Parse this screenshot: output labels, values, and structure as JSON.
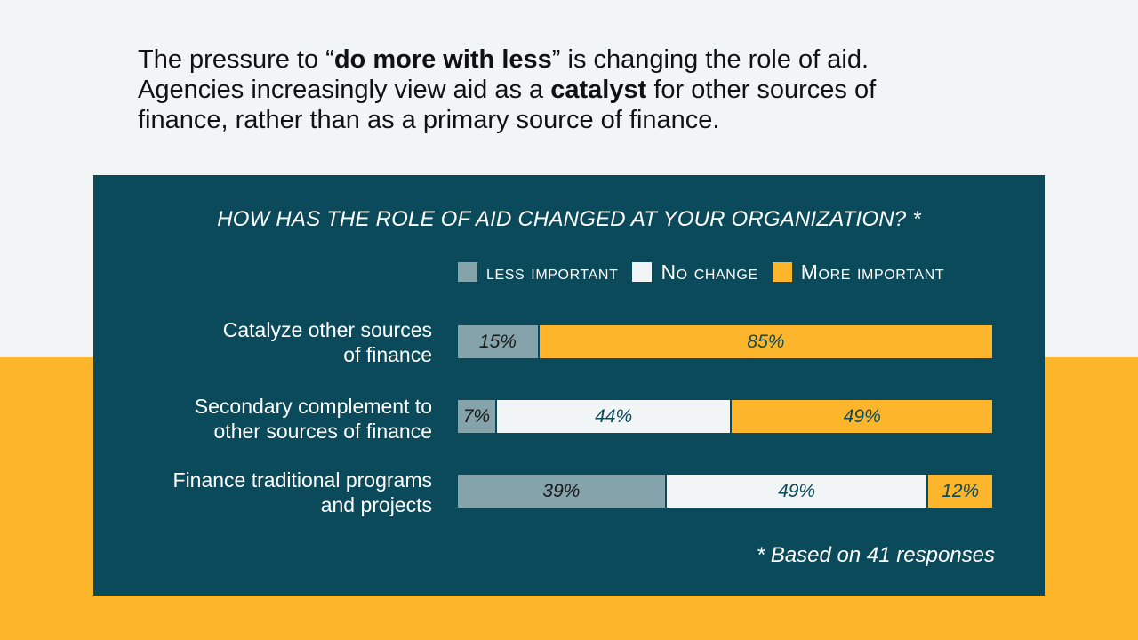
{
  "headline": {
    "l1_a": "The pressure to “",
    "l1_b": "do more with less",
    "l1_c": "” is changing the role of aid.",
    "l2_a": "Agencies increasingly view aid as a ",
    "l2_b": "catalyst",
    "l2_c": " for other sources of",
    "l3": "finance, rather than as a primary source of finance."
  },
  "colors": {
    "less": "#85A3AA",
    "nochange": "#F2F5F6",
    "more": "#FDB52B",
    "panel": "#0B4A5A",
    "label_dark": "#1A1A1A",
    "label_teal": "#0B4A5A"
  },
  "chart_data": {
    "type": "bar",
    "orientation": "horizontal",
    "stacked": true,
    "title": "HOW HAS THE ROLE OF AID CHANGED AT YOUR ORGANIZATION? *",
    "legend": [
      "less important",
      "No change",
      "More important"
    ],
    "categories": [
      [
        "Catalyze other sources",
        "of finance"
      ],
      [
        "Secondary complement to",
        "other sources of finance"
      ],
      [
        "Finance traditional programs",
        "and projects"
      ]
    ],
    "series": [
      {
        "name": "less important",
        "values": [
          15,
          7,
          39
        ]
      },
      {
        "name": "No change",
        "values": [
          0,
          44,
          49
        ]
      },
      {
        "name": "More important",
        "values": [
          85,
          49,
          12
        ]
      }
    ],
    "value_labels": [
      [
        "15%",
        "",
        "85%"
      ],
      [
        "7%",
        "44%",
        "49%"
      ],
      [
        "39%",
        "49%",
        "12%"
      ]
    ],
    "xlim": [
      0,
      100
    ],
    "footnote": "* Based on 41 responses"
  }
}
